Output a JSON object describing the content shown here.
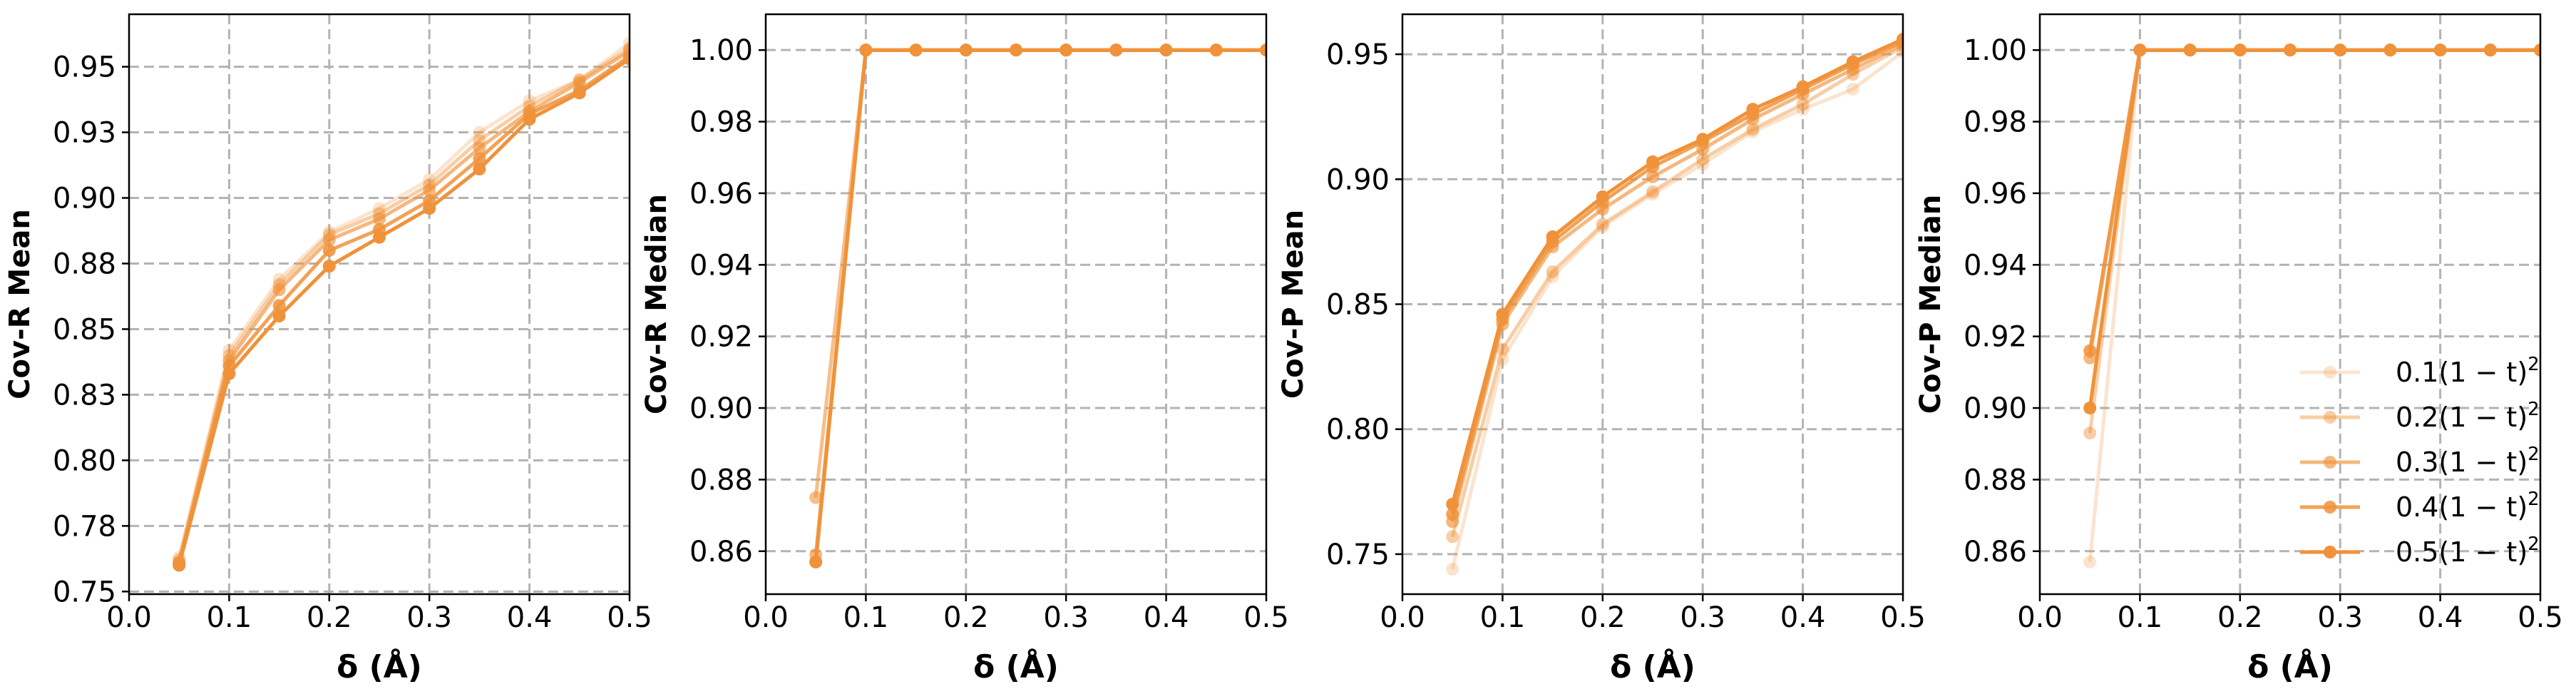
{
  "series_style": {
    "color": "#f0923a",
    "opacities": [
      0.25,
      0.45,
      0.65,
      0.85,
      1.0
    ]
  },
  "legend": {
    "placement": "lower-right",
    "panel": 3,
    "entries": [
      "0.1(1 − t)",
      "0.2(1 − t)",
      "0.3(1 − t)",
      "0.4(1 − t)",
      "0.5(1 − t)"
    ],
    "superscript": "2"
  },
  "chart_data": [
    {
      "type": "line",
      "xlabel": "δ (Å)",
      "ylabel": "Cov-R Mean",
      "xlim": [
        0.0,
        0.5
      ],
      "ylim": [
        0.749,
        0.97
      ],
      "xticks": [
        0.0,
        0.1,
        0.2,
        0.3,
        0.4,
        0.5
      ],
      "xtick_labels": [
        "0.0",
        "0.1",
        "0.2",
        "0.3",
        "0.4",
        "0.5"
      ],
      "yticks": [
        0.75,
        0.775,
        0.8,
        0.825,
        0.85,
        0.875,
        0.9,
        0.925,
        0.95
      ],
      "ytick_labels": [
        "0.75",
        "0.78",
        "0.80",
        "0.83",
        "0.85",
        "0.88",
        "0.90",
        "0.93",
        "0.95"
      ],
      "grid": true,
      "x": [
        0.05,
        0.1,
        0.15,
        0.2,
        0.25,
        0.3,
        0.35,
        0.4,
        0.45,
        0.5
      ],
      "series": [
        {
          "name": "0.1(1 − t)²",
          "values": [
            0.763,
            0.842,
            0.869,
            0.887,
            0.896,
            0.907,
            0.925,
            0.937,
            0.945,
            0.959
          ]
        },
        {
          "name": "0.2(1 − t)²",
          "values": [
            0.762,
            0.84,
            0.867,
            0.886,
            0.894,
            0.905,
            0.922,
            0.935,
            0.945,
            0.957
          ]
        },
        {
          "name": "0.3(1 − t)²",
          "values": [
            0.761,
            0.838,
            0.865,
            0.884,
            0.892,
            0.903,
            0.919,
            0.933,
            0.944,
            0.956
          ]
        },
        {
          "name": "0.4(1 − t)²",
          "values": [
            0.761,
            0.836,
            0.859,
            0.88,
            0.888,
            0.899,
            0.915,
            0.932,
            0.941,
            0.954
          ]
        },
        {
          "name": "0.5(1 − t)²",
          "values": [
            0.76,
            0.833,
            0.855,
            0.874,
            0.885,
            0.896,
            0.911,
            0.93,
            0.94,
            0.953
          ]
        }
      ]
    },
    {
      "type": "line",
      "xlabel": "δ (Å)",
      "ylabel": "Cov-R Median",
      "xlim": [
        0.0,
        0.5
      ],
      "ylim": [
        0.848,
        1.01
      ],
      "xticks": [
        0.0,
        0.1,
        0.2,
        0.3,
        0.4,
        0.5
      ],
      "xtick_labels": [
        "0.0",
        "0.1",
        "0.2",
        "0.3",
        "0.4",
        "0.5"
      ],
      "yticks": [
        0.86,
        0.88,
        0.9,
        0.92,
        0.94,
        0.96,
        0.98,
        1.0
      ],
      "ytick_labels": [
        "0.86",
        "0.88",
        "0.90",
        "0.92",
        "0.94",
        "0.96",
        "0.98",
        "1.00"
      ],
      "grid": true,
      "x": [
        0.05,
        0.1,
        0.15,
        0.2,
        0.25,
        0.3,
        0.35,
        0.4,
        0.45,
        0.5
      ],
      "series": [
        {
          "name": "0.1(1 − t)²",
          "values": [
            0.875,
            1.0,
            1.0,
            1.0,
            1.0,
            1.0,
            1.0,
            1.0,
            1.0,
            1.0
          ]
        },
        {
          "name": "0.2(1 − t)²",
          "values": [
            0.875,
            1.0,
            1.0,
            1.0,
            1.0,
            1.0,
            1.0,
            1.0,
            1.0,
            1.0
          ]
        },
        {
          "name": "0.3(1 − t)²",
          "values": [
            0.859,
            1.0,
            1.0,
            1.0,
            1.0,
            1.0,
            1.0,
            1.0,
            1.0,
            1.0
          ]
        },
        {
          "name": "0.4(1 − t)²",
          "values": [
            0.857,
            1.0,
            1.0,
            1.0,
            1.0,
            1.0,
            1.0,
            1.0,
            1.0,
            1.0
          ]
        },
        {
          "name": "0.5(1 − t)²",
          "values": [
            0.857,
            1.0,
            1.0,
            1.0,
            1.0,
            1.0,
            1.0,
            1.0,
            1.0,
            1.0
          ]
        }
      ]
    },
    {
      "type": "line",
      "xlabel": "δ (Å)",
      "ylabel": "Cov-P Mean",
      "xlim": [
        0.0,
        0.5
      ],
      "ylim": [
        0.734,
        0.966
      ],
      "xticks": [
        0.0,
        0.1,
        0.2,
        0.3,
        0.4,
        0.5
      ],
      "xtick_labels": [
        "0.0",
        "0.1",
        "0.2",
        "0.3",
        "0.4",
        "0.5"
      ],
      "yticks": [
        0.75,
        0.8,
        0.85,
        0.9,
        0.95
      ],
      "ytick_labels": [
        "0.75",
        "0.80",
        "0.85",
        "0.90",
        "0.95"
      ],
      "grid": true,
      "x": [
        0.05,
        0.1,
        0.15,
        0.2,
        0.25,
        0.3,
        0.35,
        0.4,
        0.45,
        0.5
      ],
      "series": [
        {
          "name": "0.1(1 − t)²",
          "values": [
            0.744,
            0.828,
            0.861,
            0.881,
            0.894,
            0.906,
            0.919,
            0.928,
            0.936,
            0.951
          ]
        },
        {
          "name": "0.2(1 − t)²",
          "values": [
            0.757,
            0.832,
            0.863,
            0.882,
            0.895,
            0.908,
            0.92,
            0.93,
            0.942,
            0.953
          ]
        },
        {
          "name": "0.3(1 − t)²",
          "values": [
            0.763,
            0.842,
            0.873,
            0.888,
            0.901,
            0.912,
            0.924,
            0.934,
            0.944,
            0.954
          ]
        },
        {
          "name": "0.4(1 − t)²",
          "values": [
            0.766,
            0.844,
            0.875,
            0.891,
            0.905,
            0.915,
            0.926,
            0.936,
            0.946,
            0.955
          ]
        },
        {
          "name": "0.5(1 − t)²",
          "values": [
            0.77,
            0.846,
            0.877,
            0.893,
            0.907,
            0.916,
            0.928,
            0.937,
            0.947,
            0.956
          ]
        }
      ]
    },
    {
      "type": "line",
      "xlabel": "δ (Å)",
      "ylabel": "Cov-P Median",
      "xlim": [
        0.0,
        0.5
      ],
      "ylim": [
        0.848,
        1.01
      ],
      "xticks": [
        0.0,
        0.1,
        0.2,
        0.3,
        0.4,
        0.5
      ],
      "xtick_labels": [
        "0.0",
        "0.1",
        "0.2",
        "0.3",
        "0.4",
        "0.5"
      ],
      "yticks": [
        0.86,
        0.88,
        0.9,
        0.92,
        0.94,
        0.96,
        0.98,
        1.0
      ],
      "ytick_labels": [
        "0.86",
        "0.88",
        "0.90",
        "0.92",
        "0.94",
        "0.96",
        "0.98",
        "1.00"
      ],
      "grid": true,
      "x": [
        0.05,
        0.1,
        0.15,
        0.2,
        0.25,
        0.3,
        0.35,
        0.4,
        0.45,
        0.5
      ],
      "series": [
        {
          "name": "0.1(1 − t)²",
          "values": [
            0.857,
            1.0,
            1.0,
            1.0,
            1.0,
            1.0,
            1.0,
            1.0,
            1.0,
            1.0
          ]
        },
        {
          "name": "0.2(1 − t)²",
          "values": [
            0.893,
            1.0,
            1.0,
            1.0,
            1.0,
            1.0,
            1.0,
            1.0,
            1.0,
            1.0
          ]
        },
        {
          "name": "0.3(1 − t)²",
          "values": [
            0.914,
            1.0,
            1.0,
            1.0,
            1.0,
            1.0,
            1.0,
            1.0,
            1.0,
            1.0
          ]
        },
        {
          "name": "0.4(1 − t)²",
          "values": [
            0.916,
            1.0,
            1.0,
            1.0,
            1.0,
            1.0,
            1.0,
            1.0,
            1.0,
            1.0
          ]
        },
        {
          "name": "0.5(1 − t)²",
          "values": [
            0.9,
            1.0,
            1.0,
            1.0,
            1.0,
            1.0,
            1.0,
            1.0,
            1.0,
            1.0
          ]
        }
      ]
    }
  ]
}
